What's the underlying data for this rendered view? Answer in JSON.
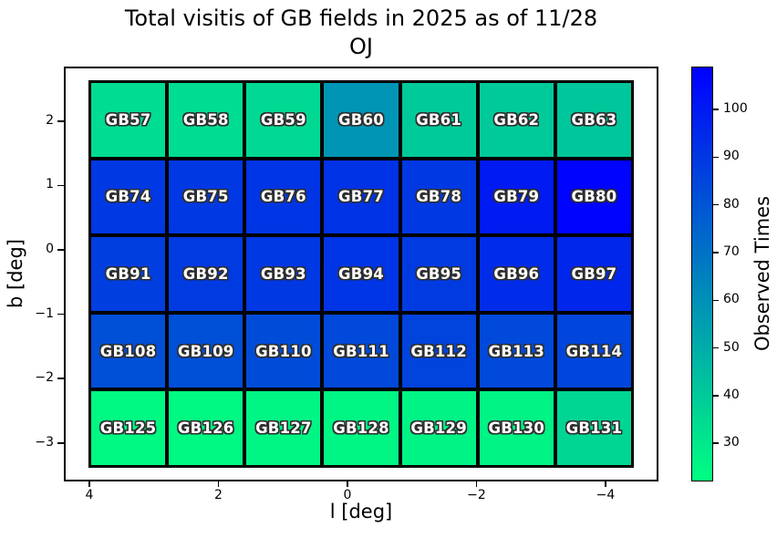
{
  "title": {
    "line1": "Total visitis of GB fields in 2025 as of 11/28",
    "line2": "OJ"
  },
  "axes": {
    "xlabel": "l [deg]",
    "ylabel": "b [deg]",
    "x_ticks": [
      4,
      2,
      0,
      -2,
      -4
    ],
    "y_ticks": [
      2,
      1,
      0,
      -1,
      -2,
      -3
    ]
  },
  "colorbar": {
    "label": "Observed Times",
    "ticks": [
      100,
      90,
      80,
      70,
      60,
      50,
      40,
      30
    ],
    "vmin": 22,
    "vmax": 109,
    "colormap": "winter_r",
    "top_color": "#0000ff",
    "bottom_color": "#00ff80"
  },
  "chart_data": {
    "type": "heatmap",
    "title": "Total visitis of GB fields in 2025 as of 11/28 OJ",
    "xlabel": "l [deg]",
    "ylabel": "b [deg]",
    "colorbar_label": "Observed Times",
    "colormap": "winter_r",
    "value_range": [
      22,
      109
    ],
    "x_axis_inverted": true,
    "x_tick_values": [
      4,
      2,
      0,
      -2,
      -4
    ],
    "y_tick_values": [
      2,
      1,
      0,
      -1,
      -2,
      -3
    ],
    "l_centers": [
      3.4,
      2.2,
      1.0,
      -0.2,
      -1.4,
      -2.6,
      -3.8
    ],
    "rows": [
      {
        "b_center": 2.0,
        "fields": [
          "GB57",
          "GB58",
          "GB59",
          "GB60",
          "GB61",
          "GB62",
          "GB63"
        ],
        "values": [
          34,
          34,
          35,
          58,
          40,
          40,
          41
        ]
      },
      {
        "b_center": 0.8,
        "fields": [
          "GB74",
          "GB75",
          "GB76",
          "GB77",
          "GB78",
          "GB79",
          "GB80"
        ],
        "values": [
          90,
          90,
          91,
          92,
          90,
          100,
          108
        ]
      },
      {
        "b_center": -0.4,
        "fields": [
          "GB91",
          "GB92",
          "GB93",
          "GB94",
          "GB95",
          "GB96",
          "GB97"
        ],
        "values": [
          88,
          89,
          90,
          91,
          89,
          94,
          96
        ]
      },
      {
        "b_center": -1.6,
        "fields": [
          "GB108",
          "GB109",
          "GB110",
          "GB111",
          "GB112",
          "GB113",
          "GB114"
        ],
        "values": [
          82,
          82,
          83,
          84,
          86,
          84,
          85
        ]
      },
      {
        "b_center": -2.8,
        "fields": [
          "GB125",
          "GB126",
          "GB127",
          "GB128",
          "GB129",
          "GB130",
          "GB131"
        ],
        "values": [
          24,
          24,
          25,
          25,
          26,
          26,
          36
        ]
      }
    ]
  }
}
